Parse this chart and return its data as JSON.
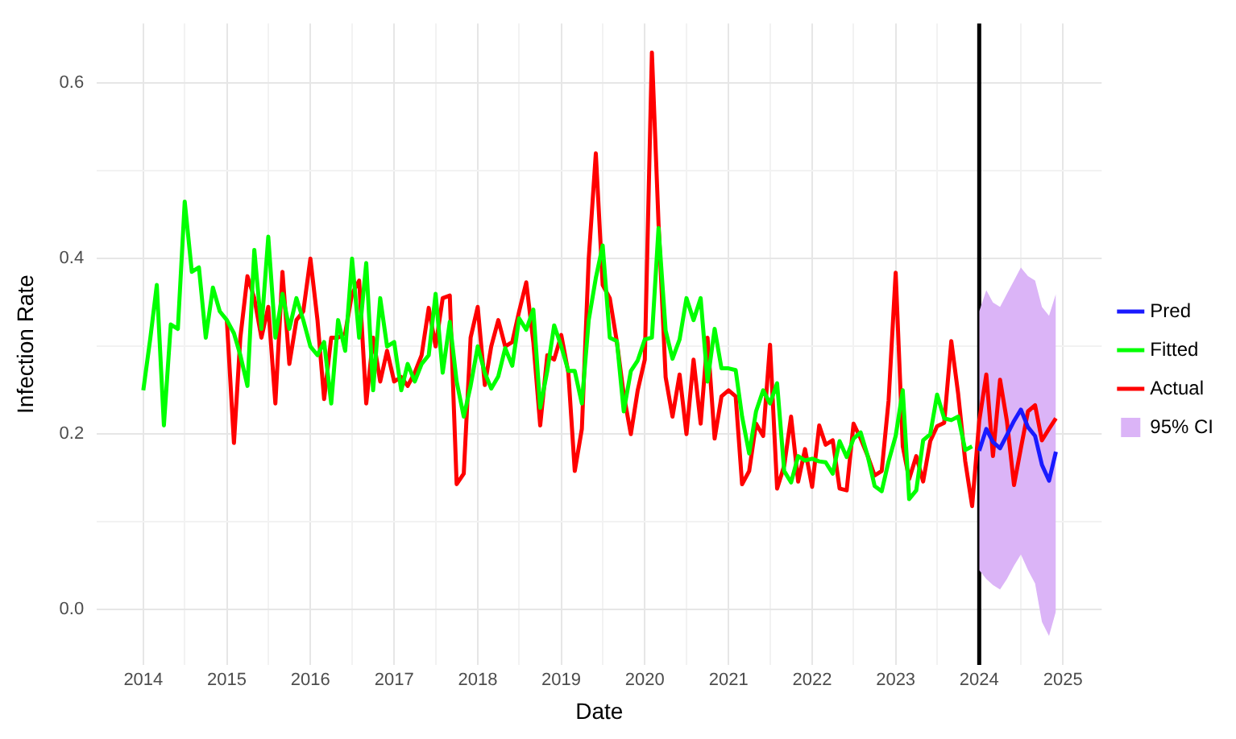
{
  "chart_data": {
    "type": "line",
    "xlabel": "Date",
    "ylabel": "Infection Rate",
    "x": [
      "2014-01",
      "2014-02",
      "2014-03",
      "2014-04",
      "2014-05",
      "2014-06",
      "2014-07",
      "2014-08",
      "2014-09",
      "2014-10",
      "2014-11",
      "2014-12",
      "2015-01",
      "2015-02",
      "2015-03",
      "2015-04",
      "2015-05",
      "2015-06",
      "2015-07",
      "2015-08",
      "2015-09",
      "2015-10",
      "2015-11",
      "2015-12",
      "2016-01",
      "2016-02",
      "2016-03",
      "2016-04",
      "2016-05",
      "2016-06",
      "2016-07",
      "2016-08",
      "2016-09",
      "2016-10",
      "2016-11",
      "2016-12",
      "2017-01",
      "2017-02",
      "2017-03",
      "2017-04",
      "2017-05",
      "2017-06",
      "2017-07",
      "2017-08",
      "2017-09",
      "2017-10",
      "2017-11",
      "2017-12",
      "2018-01",
      "2018-02",
      "2018-03",
      "2018-04",
      "2018-05",
      "2018-06",
      "2018-07",
      "2018-08",
      "2018-09",
      "2018-10",
      "2018-11",
      "2018-12",
      "2019-01",
      "2019-02",
      "2019-03",
      "2019-04",
      "2019-05",
      "2019-06",
      "2019-07",
      "2019-08",
      "2019-09",
      "2019-10",
      "2019-11",
      "2019-12",
      "2020-01",
      "2020-02",
      "2020-03",
      "2020-04",
      "2020-05",
      "2020-06",
      "2020-07",
      "2020-08",
      "2020-09",
      "2020-10",
      "2020-11",
      "2020-12",
      "2021-01",
      "2021-02",
      "2021-03",
      "2021-04",
      "2021-05",
      "2021-06",
      "2021-07",
      "2021-08",
      "2021-09",
      "2021-10",
      "2021-11",
      "2021-12",
      "2022-01",
      "2022-02",
      "2022-03",
      "2022-04",
      "2022-05",
      "2022-06",
      "2022-07",
      "2022-08",
      "2022-09",
      "2022-10",
      "2022-11",
      "2022-12",
      "2023-01",
      "2023-02",
      "2023-03",
      "2023-04",
      "2023-05",
      "2023-06",
      "2023-07",
      "2023-08",
      "2023-09",
      "2023-10",
      "2023-11",
      "2023-12",
      "2024-01",
      "2024-02",
      "2024-03",
      "2024-04",
      "2024-05",
      "2024-06",
      "2024-07",
      "2024-08",
      "2024-09",
      "2024-10",
      "2024-11",
      "2024-12"
    ],
    "series": [
      {
        "name": "95% CI",
        "type": "area",
        "color": "#dbb4f7",
        "values": [
          null,
          null,
          null,
          null,
          null,
          null,
          null,
          null,
          null,
          null,
          null,
          null,
          null,
          null,
          null,
          null,
          null,
          null,
          null,
          null,
          null,
          null,
          null,
          null,
          null,
          null,
          null,
          null,
          null,
          null,
          null,
          null,
          null,
          null,
          null,
          null,
          null,
          null,
          null,
          null,
          null,
          null,
          null,
          null,
          null,
          null,
          null,
          null,
          null,
          null,
          null,
          null,
          null,
          null,
          null,
          null,
          null,
          null,
          null,
          null,
          null,
          null,
          null,
          null,
          null,
          null,
          null,
          null,
          null,
          null,
          null,
          null,
          null,
          null,
          null,
          null,
          null,
          null,
          null,
          null,
          null,
          null,
          null,
          null,
          null,
          null,
          null,
          null,
          null,
          null,
          null,
          null,
          null,
          null,
          null,
          null,
          null,
          null,
          null,
          null,
          null,
          null,
          null,
          null,
          null,
          null,
          null,
          null,
          null,
          null,
          null,
          null,
          null,
          null,
          null,
          null,
          null,
          null,
          null,
          null,
          null,
          null,
          null,
          null,
          null,
          null,
          null,
          null,
          null,
          null,
          null,
          null
        ],
        "lower": [
          null,
          null,
          null,
          null,
          null,
          null,
          null,
          null,
          null,
          null,
          null,
          null,
          null,
          null,
          null,
          null,
          null,
          null,
          null,
          null,
          null,
          null,
          null,
          null,
          null,
          null,
          null,
          null,
          null,
          null,
          null,
          null,
          null,
          null,
          null,
          null,
          null,
          null,
          null,
          null,
          null,
          null,
          null,
          null,
          null,
          null,
          null,
          null,
          null,
          null,
          null,
          null,
          null,
          null,
          null,
          null,
          null,
          null,
          null,
          null,
          null,
          null,
          null,
          null,
          null,
          null,
          null,
          null,
          null,
          null,
          null,
          null,
          null,
          null,
          null,
          null,
          null,
          null,
          null,
          null,
          null,
          null,
          null,
          null,
          null,
          null,
          null,
          null,
          null,
          null,
          null,
          null,
          null,
          null,
          null,
          null,
          null,
          null,
          null,
          null,
          null,
          null,
          null,
          null,
          null,
          null,
          null,
          null,
          null,
          null,
          null,
          null,
          null,
          null,
          null,
          null,
          null,
          null,
          null,
          null,
          0.045,
          0.035,
          0.028,
          0.023,
          0.035,
          0.05,
          0.063,
          0.045,
          0.03,
          -0.014,
          -0.03,
          -0.002
        ],
        "upper": [
          null,
          null,
          null,
          null,
          null,
          null,
          null,
          null,
          null,
          null,
          null,
          null,
          null,
          null,
          null,
          null,
          null,
          null,
          null,
          null,
          null,
          null,
          null,
          null,
          null,
          null,
          null,
          null,
          null,
          null,
          null,
          null,
          null,
          null,
          null,
          null,
          null,
          null,
          null,
          null,
          null,
          null,
          null,
          null,
          null,
          null,
          null,
          null,
          null,
          null,
          null,
          null,
          null,
          null,
          null,
          null,
          null,
          null,
          null,
          null,
          null,
          null,
          null,
          null,
          null,
          null,
          null,
          null,
          null,
          null,
          null,
          null,
          null,
          null,
          null,
          null,
          null,
          null,
          null,
          null,
          null,
          null,
          null,
          null,
          null,
          null,
          null,
          null,
          null,
          null,
          null,
          null,
          null,
          null,
          null,
          null,
          null,
          null,
          null,
          null,
          null,
          null,
          null,
          null,
          null,
          null,
          null,
          null,
          null,
          null,
          null,
          null,
          null,
          null,
          null,
          null,
          null,
          null,
          null,
          null,
          0.34,
          0.364,
          0.35,
          0.345,
          0.36,
          0.375,
          0.39,
          0.38,
          0.375,
          0.345,
          0.335,
          0.36
        ]
      },
      {
        "name": "Actual",
        "color": "#ff0000",
        "values": [
          null,
          null,
          null,
          null,
          null,
          null,
          null,
          null,
          null,
          null,
          null,
          null,
          0.33,
          0.19,
          0.31,
          0.38,
          0.355,
          0.31,
          0.345,
          0.235,
          0.385,
          0.28,
          0.33,
          0.34,
          0.4,
          0.33,
          0.24,
          0.31,
          0.31,
          0.315,
          0.36,
          0.375,
          0.235,
          0.31,
          0.26,
          0.295,
          0.26,
          0.265,
          0.255,
          0.27,
          0.29,
          0.344,
          0.3,
          0.355,
          0.358,
          0.143,
          0.155,
          0.31,
          0.345,
          0.256,
          0.3,
          0.33,
          0.3,
          0.305,
          0.34,
          0.373,
          0.305,
          0.21,
          0.29,
          0.285,
          0.313,
          0.27,
          0.158,
          0.206,
          0.4,
          0.52,
          0.37,
          0.355,
          0.305,
          0.245,
          0.2,
          0.25,
          0.285,
          0.635,
          0.44,
          0.265,
          0.22,
          0.268,
          0.2,
          0.285,
          0.212,
          0.31,
          0.195,
          0.243,
          0.25,
          0.243,
          0.143,
          0.158,
          0.212,
          0.198,
          0.302,
          0.138,
          0.164,
          0.22,
          0.146,
          0.183,
          0.14,
          0.21,
          0.188,
          0.193,
          0.138,
          0.136,
          0.212,
          0.195,
          0.175,
          0.153,
          0.158,
          0.238,
          0.384,
          0.186,
          0.149,
          0.175,
          0.146,
          0.192,
          0.209,
          0.213,
          0.306,
          0.246,
          0.169,
          0.118,
          0.215,
          0.268,
          0.175,
          0.262,
          0.215,
          0.142,
          0.184,
          0.226,
          0.233,
          0.193,
          0.206,
          0.218
        ]
      },
      {
        "name": "Fitted",
        "color": "#00ff00",
        "values": [
          0.25,
          0.31,
          0.37,
          0.21,
          0.325,
          0.32,
          0.465,
          0.385,
          0.39,
          0.31,
          0.367,
          0.34,
          0.33,
          0.315,
          0.29,
          0.255,
          0.41,
          0.32,
          0.425,
          0.31,
          0.36,
          0.32,
          0.355,
          0.33,
          0.3,
          0.29,
          0.305,
          0.235,
          0.33,
          0.295,
          0.4,
          0.31,
          0.395,
          0.25,
          0.355,
          0.3,
          0.305,
          0.25,
          0.28,
          0.26,
          0.28,
          0.29,
          0.36,
          0.27,
          0.328,
          0.26,
          0.22,
          0.255,
          0.3,
          0.27,
          0.252,
          0.266,
          0.298,
          0.278,
          0.332,
          0.319,
          0.342,
          0.23,
          0.272,
          0.324,
          0.3,
          0.272,
          0.272,
          0.235,
          0.33,
          0.378,
          0.415,
          0.31,
          0.306,
          0.226,
          0.272,
          0.284,
          0.308,
          0.31,
          0.435,
          0.318,
          0.286,
          0.308,
          0.355,
          0.33,
          0.355,
          0.26,
          0.32,
          0.275,
          0.275,
          0.273,
          0.22,
          0.178,
          0.226,
          0.25,
          0.235,
          0.258,
          0.158,
          0.145,
          0.175,
          0.17,
          0.172,
          0.169,
          0.168,
          0.155,
          0.192,
          0.174,
          0.195,
          0.202,
          0.175,
          0.141,
          0.135,
          0.169,
          0.198,
          0.25,
          0.126,
          0.136,
          0.193,
          0.2,
          0.245,
          0.218,
          0.216,
          0.22,
          0.182,
          0.186,
          null,
          null,
          null,
          null,
          null,
          null,
          null,
          null,
          null,
          null,
          null,
          null
        ]
      },
      {
        "name": "Pred",
        "color": "#1a1aff",
        "values": [
          null,
          null,
          null,
          null,
          null,
          null,
          null,
          null,
          null,
          null,
          null,
          null,
          null,
          null,
          null,
          null,
          null,
          null,
          null,
          null,
          null,
          null,
          null,
          null,
          null,
          null,
          null,
          null,
          null,
          null,
          null,
          null,
          null,
          null,
          null,
          null,
          null,
          null,
          null,
          null,
          null,
          null,
          null,
          null,
          null,
          null,
          null,
          null,
          null,
          null,
          null,
          null,
          null,
          null,
          null,
          null,
          null,
          null,
          null,
          null,
          null,
          null,
          null,
          null,
          null,
          null,
          null,
          null,
          null,
          null,
          null,
          null,
          null,
          null,
          null,
          null,
          null,
          null,
          null,
          null,
          null,
          null,
          null,
          null,
          null,
          null,
          null,
          null,
          null,
          null,
          null,
          null,
          null,
          null,
          null,
          null,
          null,
          null,
          null,
          null,
          null,
          null,
          null,
          null,
          null,
          null,
          null,
          null,
          null,
          null,
          null,
          null,
          null,
          null,
          null,
          null,
          null,
          null,
          null,
          null,
          0.181,
          0.206,
          0.191,
          0.184,
          0.199,
          0.215,
          0.228,
          0.208,
          0.198,
          0.165,
          0.147,
          0.18
        ]
      }
    ],
    "xlim": [
      "2013-06-12",
      "2025-06-19"
    ],
    "xticks": [
      {
        "value": "2014-01",
        "label": "2014"
      },
      {
        "value": "2014-07",
        "label": null
      },
      {
        "value": "2015-01",
        "label": "2015"
      },
      {
        "value": "2015-07",
        "label": null
      },
      {
        "value": "2016-01",
        "label": "2016"
      },
      {
        "value": "2016-07",
        "label": null
      },
      {
        "value": "2017-01",
        "label": "2017"
      },
      {
        "value": "2017-07",
        "label": null
      },
      {
        "value": "2018-01",
        "label": "2018"
      },
      {
        "value": "2018-07",
        "label": null
      },
      {
        "value": "2019-01",
        "label": "2019"
      },
      {
        "value": "2019-07",
        "label": null
      },
      {
        "value": "2020-01",
        "label": "2020"
      },
      {
        "value": "2020-07",
        "label": null
      },
      {
        "value": "2021-01",
        "label": "2021"
      },
      {
        "value": "2021-07",
        "label": null
      },
      {
        "value": "2022-01",
        "label": "2022"
      },
      {
        "value": "2022-07",
        "label": null
      },
      {
        "value": "2023-01",
        "label": "2023"
      },
      {
        "value": "2023-07",
        "label": null
      },
      {
        "value": "2024-01",
        "label": "2024"
      },
      {
        "value": "2024-07",
        "label": null
      },
      {
        "value": "2025-01",
        "label": "2025"
      }
    ],
    "ylim": [
      -0.063,
      0.668
    ],
    "yticks": [
      {
        "value": 0,
        "label": "0.0"
      },
      {
        "value": 0.1,
        "label": null
      },
      0.2,
      {
        "value": 0.3,
        "label": null
      },
      0.4,
      {
        "value": 0.5,
        "label": null
      },
      0.6
    ],
    "ref_lines": [
      {
        "axis": "x",
        "value": "2024-01",
        "color": "#000000"
      }
    ],
    "grid": true,
    "legend": "right"
  }
}
